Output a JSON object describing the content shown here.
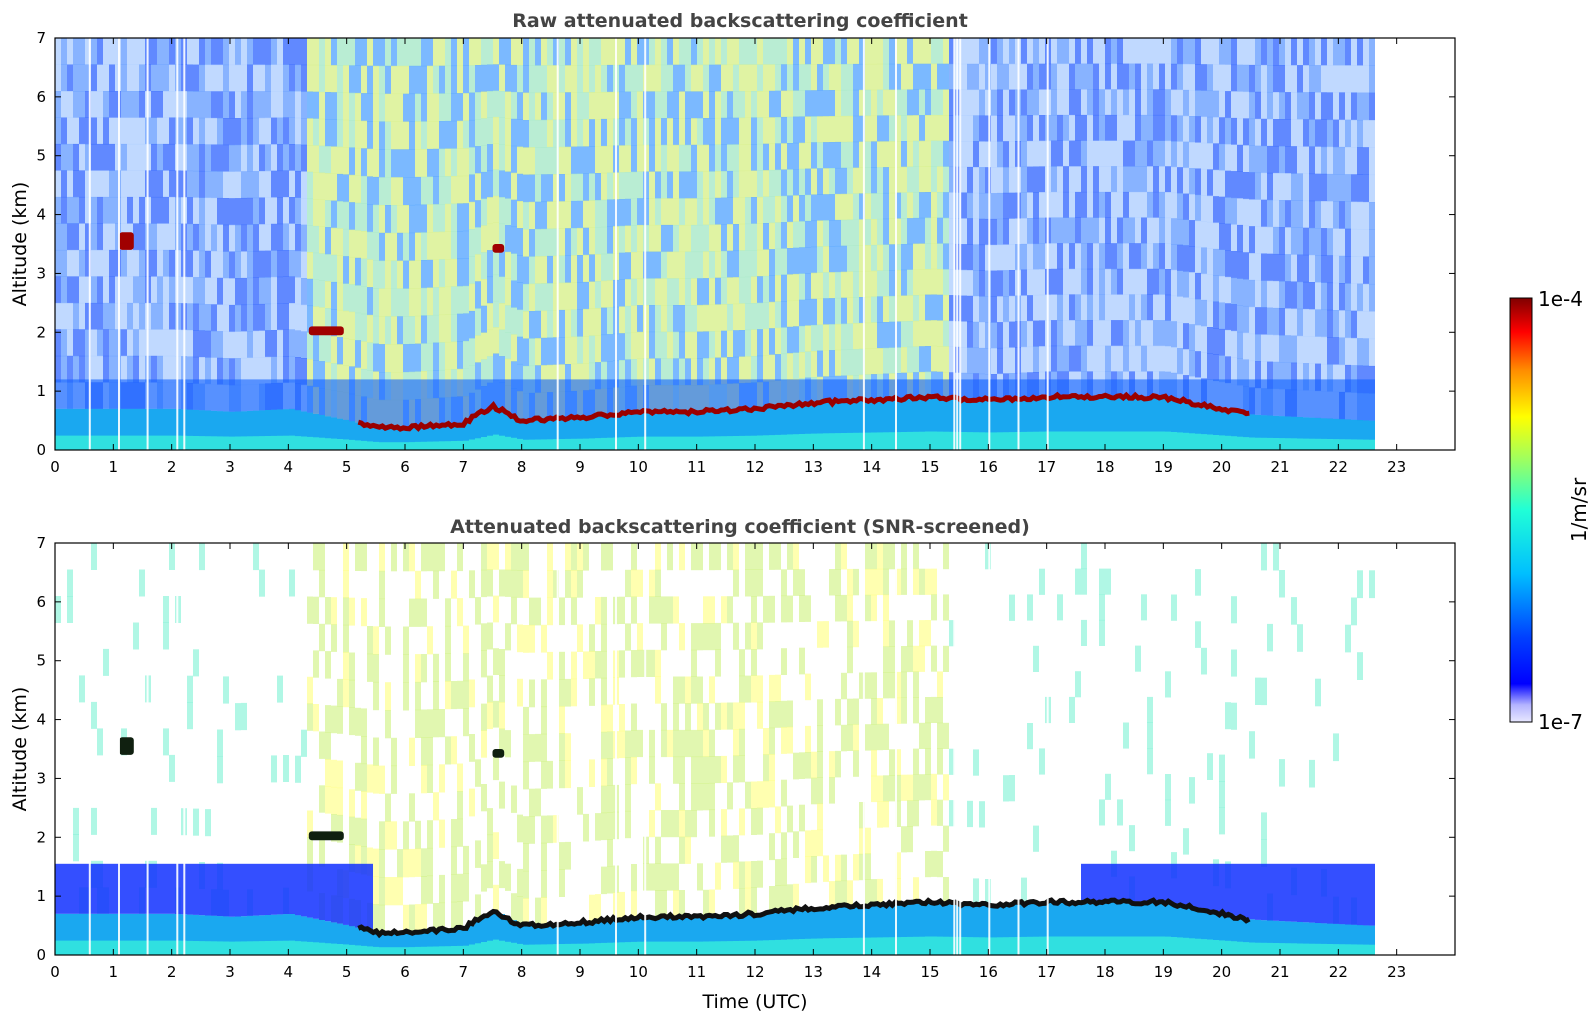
{
  "chart_data": [
    {
      "type": "heatmap",
      "title": "Raw attenuated backscattering coefficient",
      "xlabel": "",
      "ylabel": "Altitude (km)",
      "xlim": [
        0,
        24
      ],
      "ylim": [
        0,
        7
      ],
      "x_ticks": [
        "0",
        "1",
        "2",
        "3",
        "4",
        "5",
        "6",
        "7",
        "8",
        "9",
        "10",
        "11",
        "12",
        "13",
        "14",
        "15",
        "16",
        "17",
        "18",
        "19",
        "20",
        "21",
        "22",
        "23"
      ],
      "y_ticks": [
        "0",
        "1",
        "2",
        "3",
        "4",
        "5",
        "6",
        "7"
      ],
      "data_end_time": 22.55,
      "boundary_layer_top_km": [
        [
          0,
          0.7
        ],
        [
          1,
          0.7
        ],
        [
          2,
          0.7
        ],
        [
          3,
          0.65
        ],
        [
          4,
          0.7
        ],
        [
          5,
          0.5
        ],
        [
          5.5,
          0.38
        ],
        [
          6,
          0.38
        ],
        [
          7,
          0.45
        ],
        [
          7.5,
          0.75
        ],
        [
          8,
          0.5
        ],
        [
          9,
          0.55
        ],
        [
          10,
          0.65
        ],
        [
          11,
          0.65
        ],
        [
          12,
          0.7
        ],
        [
          13,
          0.8
        ],
        [
          14,
          0.85
        ],
        [
          15,
          0.9
        ],
        [
          16,
          0.85
        ],
        [
          17,
          0.9
        ],
        [
          18,
          0.9
        ],
        [
          19,
          0.9
        ],
        [
          20,
          0.7
        ],
        [
          20.5,
          0.6
        ],
        [
          22.5,
          0.5
        ]
      ],
      "elevated_layers": [
        {
          "time": [
            1.1,
            1.35
          ],
          "altitude_km": [
            3.4,
            3.7
          ]
        },
        {
          "time": [
            4.35,
            4.95
          ],
          "altitude_km": [
            1.95,
            2.1
          ]
        },
        {
          "time": [
            7.5,
            7.7
          ],
          "altitude_km": [
            3.35,
            3.5
          ]
        }
      ],
      "gap_times": [
        0.58,
        1.08,
        1.57,
        2.08,
        2.2,
        8.6,
        9.6,
        10.1,
        13.85,
        14.4,
        15.4,
        15.45,
        15.5,
        16.0,
        16.5,
        17.0
      ]
    },
    {
      "type": "heatmap",
      "title": "Attenuated backscattering coefficient (SNR-screened)",
      "xlabel": "Time (UTC)",
      "ylabel": "Altitude (km)",
      "xlim": [
        0,
        24
      ],
      "ylim": [
        0,
        7
      ],
      "x_ticks": [
        "0",
        "1",
        "2",
        "3",
        "4",
        "5",
        "6",
        "7",
        "8",
        "9",
        "10",
        "11",
        "12",
        "13",
        "14",
        "15",
        "16",
        "17",
        "18",
        "19",
        "20",
        "21",
        "22",
        "23"
      ],
      "y_ticks": [
        "0",
        "1",
        "2",
        "3",
        "4",
        "5",
        "6",
        "7"
      ],
      "data_end_time": 22.55
    }
  ],
  "colorbar": {
    "max_label": "1e-4",
    "min_label": "1e-7",
    "unit_label": "1/m/sr",
    "scale": "log",
    "colormap": "jet"
  }
}
